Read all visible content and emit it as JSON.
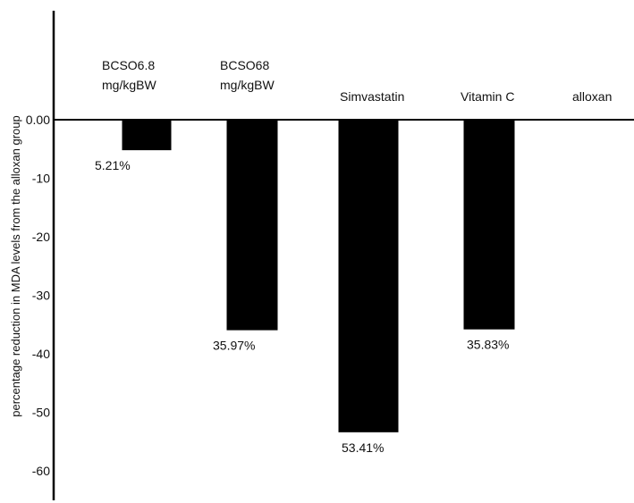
{
  "chart_data": {
    "type": "bar",
    "ylabel": "percentage reduction in MDA levels from the alloxan group",
    "ylim": [
      -60,
      0
    ],
    "yticks": [
      "0.00",
      "-10",
      "-20",
      "-30",
      "-40",
      "-50",
      "-60"
    ],
    "grid": false,
    "legend": "none",
    "bar_color": "#000000",
    "categories": [
      {
        "lines": [
          "BCSO6.8",
          "mg/kgBW"
        ]
      },
      {
        "lines": [
          "BCSO68",
          "mg/kgBW"
        ]
      },
      {
        "lines": [
          "Simvastatin"
        ]
      },
      {
        "lines": [
          "Vitamin C"
        ]
      },
      {
        "lines": [
          "alloxan"
        ]
      }
    ],
    "values": [
      -5.21,
      -35.97,
      -53.41,
      -35.83,
      0
    ],
    "data_labels": [
      "5.21%",
      "35.97%",
      "53.41%",
      "35.83%",
      ""
    ]
  }
}
